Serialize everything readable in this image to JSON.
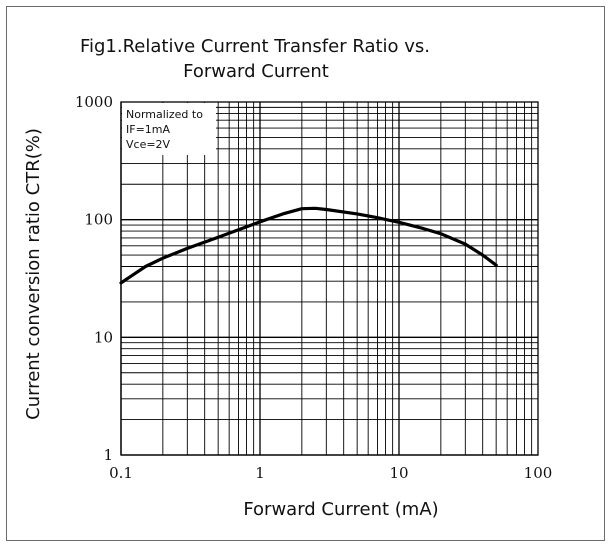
{
  "chart_data": {
    "type": "line",
    "title_lines": [
      "Fig1.Relative Current Transfer Ratio vs.",
      "Forward Current"
    ],
    "xlabel": "Forward Current (mA)",
    "ylabel": "Current conversion ratio CTR(%)",
    "x_scale": "log",
    "y_scale": "log",
    "xlim": [
      0.1,
      100
    ],
    "ylim": [
      1,
      1000
    ],
    "x_ticks": [
      0.1,
      1,
      10,
      100
    ],
    "x_tick_labels": [
      "0.1",
      "1",
      "10",
      "100"
    ],
    "y_ticks": [
      1,
      10,
      100,
      1000
    ],
    "y_tick_labels": [
      "1",
      "10",
      "100",
      "1000"
    ],
    "grid": true,
    "note_lines": [
      "Normalized to",
      "IF=1mA",
      "Vce=2V"
    ],
    "series": [
      {
        "x": [
          0.1,
          0.15,
          0.2,
          0.3,
          0.5,
          0.7,
          1.0,
          1.5,
          2.0,
          2.5,
          3,
          5,
          7,
          10,
          15,
          20,
          30,
          40,
          50
        ],
        "y": [
          29,
          40,
          47,
          57,
          71,
          82,
          96,
          113,
          124,
          125,
          122,
          112,
          104,
          95,
          84,
          76,
          62,
          50,
          41
        ]
      }
    ],
    "colors": {
      "line": "#000000",
      "grid": "#000000",
      "frame": "#6b6b6b"
    }
  }
}
